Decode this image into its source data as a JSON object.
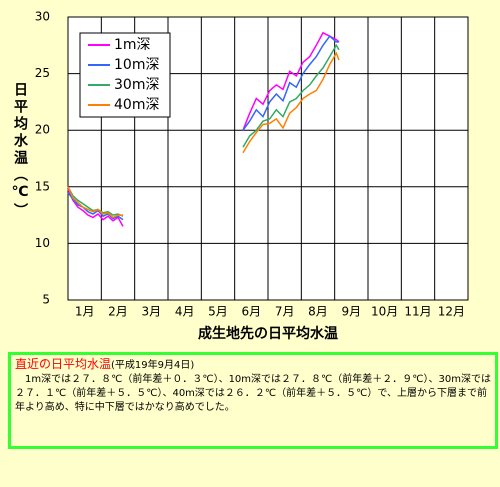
{
  "chart_data": {
    "type": "line",
    "title": "成生地先の日平均水温",
    "y_label": "日平均水温（℃）",
    "xlim": [
      1,
      13
    ],
    "xticks": [
      {
        "value": 1.5,
        "label": "1月"
      },
      {
        "value": 2.5,
        "label": "2月"
      },
      {
        "value": 3.5,
        "label": "3月"
      },
      {
        "value": 4.5,
        "label": "4月"
      },
      {
        "value": 5.5,
        "label": "5月"
      },
      {
        "value": 6.5,
        "label": "6月"
      },
      {
        "value": 7.5,
        "label": "7月"
      },
      {
        "value": 8.5,
        "label": "8月"
      },
      {
        "value": 9.5,
        "label": "9月"
      },
      {
        "value": 10.5,
        "label": "10月"
      },
      {
        "value": 11.5,
        "label": "11月"
      },
      {
        "value": 12.5,
        "label": "12月"
      }
    ],
    "ylim": [
      5,
      30
    ],
    "yticks": [
      5,
      10,
      15,
      20,
      25,
      30
    ],
    "grid": true,
    "legend": "upper left",
    "x": [
      1.0,
      1.15,
      1.3,
      1.45,
      1.6,
      1.75,
      1.9,
      2.05,
      2.2,
      2.35,
      2.5,
      2.65,
      4.5,
      6.25,
      6.45,
      6.65,
      6.85,
      7.05,
      7.25,
      7.45,
      7.65,
      7.85,
      8.05,
      8.25,
      8.45,
      8.65,
      8.85,
      9.05,
      9.13
    ],
    "series": [
      {
        "name": "1m深",
        "color": "#ff00ff",
        "values": [
          14.8,
          13.8,
          13.2,
          12.9,
          12.5,
          12.3,
          12.6,
          12.1,
          12.4,
          12.0,
          12.3,
          11.5,
          null,
          20.0,
          21.5,
          22.8,
          22.3,
          23.5,
          24.0,
          23.6,
          25.2,
          24.8,
          26.0,
          26.5,
          27.5,
          28.6,
          28.3,
          28.0,
          27.8
        ]
      },
      {
        "name": "10m深",
        "color": "#3366ff",
        "values": [
          14.5,
          13.9,
          13.4,
          13.2,
          12.8,
          12.6,
          12.9,
          12.4,
          12.6,
          12.2,
          12.4,
          12.1,
          null,
          20.0,
          20.8,
          21.8,
          21.2,
          22.5,
          23.2,
          22.6,
          24.2,
          23.8,
          25.0,
          25.8,
          26.5,
          27.5,
          28.3,
          27.8,
          27.8
        ]
      },
      {
        "name": "30m深",
        "color": "#33aa66",
        "values": [
          15.0,
          14.2,
          13.8,
          13.5,
          13.2,
          12.9,
          13.0,
          12.7,
          12.8,
          12.5,
          12.6,
          12.4,
          null,
          18.5,
          19.5,
          20.0,
          20.8,
          21.0,
          21.8,
          21.2,
          22.5,
          22.8,
          23.5,
          24.0,
          24.8,
          25.5,
          26.5,
          27.5,
          27.1
        ]
      },
      {
        "name": "40m深",
        "color": "#ff8000",
        "values": [
          15.0,
          14.0,
          13.6,
          13.2,
          13.0,
          12.8,
          13.0,
          12.6,
          12.7,
          12.3,
          12.5,
          12.5,
          null,
          18.0,
          19.0,
          19.8,
          20.5,
          20.6,
          21.0,
          20.2,
          21.5,
          22.0,
          22.8,
          23.2,
          23.5,
          24.5,
          25.8,
          26.8,
          26.2
        ]
      }
    ]
  },
  "notice": {
    "title": "直近の日平均水温",
    "date": "(平成19年9月4日)",
    "body": "　1m深では２７．８℃（前年差＋０．３℃）、10m深では２７．８℃（前年差＋２．９℃）、30m深では２７．１℃（前年差＋５．５℃）、40m深では２６．２℃（前年差＋５．５℃）で、上層から下層まで前年より高め、特に中下層ではかなり高めでした。"
  }
}
